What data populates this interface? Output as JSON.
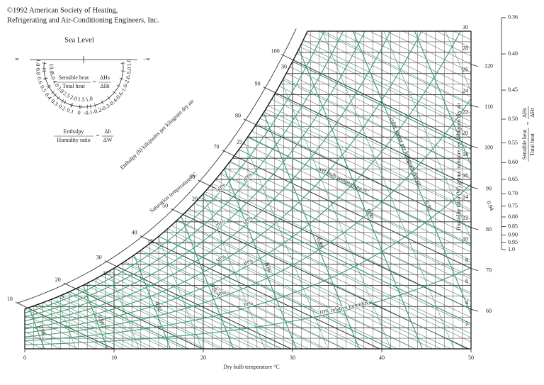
{
  "chart_data": {
    "type": "psychrometric",
    "title_lines": [
      "©1992 American Society of Heating,",
      "Refrigerating and Air-Conditioning Engineers, Inc."
    ],
    "subtitle": "Sea Level",
    "x_label": "Dry bulb temperature °C",
    "xlim": [
      0,
      50
    ],
    "xticks": [
      0,
      10,
      20,
      30,
      40,
      50
    ],
    "y_label": "Humidity ratio (W) grams moisture per kilogram dry air",
    "ylim": [
      0,
      30
    ],
    "yticks": [
      2,
      4,
      6,
      8,
      10,
      12,
      14,
      16,
      18,
      20,
      22,
      24,
      26,
      28,
      30
    ],
    "enthalpy_label": "Enthalpy (h) kilojoules per kilogram dry air",
    "enthalpy_ticks": [
      10,
      20,
      30,
      40,
      50,
      60,
      70,
      80,
      90,
      100
    ],
    "enthalpy_right_ticks": [
      60,
      70,
      80,
      90,
      100,
      110,
      120
    ],
    "saturation_label": "Saturation temperature °C",
    "wet_bulb_label": "wet bulb temperature °C",
    "wet_bulb_ticks": [
      5,
      10,
      15,
      20,
      25,
      30
    ],
    "volume_label": "cubic meter per kilogram dry air",
    "volume_ticks": [
      0.78,
      {
        "value": 0.8,
        "label": "0.80"
      },
      0.82,
      0.84,
      0.86,
      0.88,
      {
        "value": 0.9,
        "label": "0.90"
      },
      0.92,
      0.94
    ],
    "relative_humidity": {
      "values": [
        10,
        20,
        30,
        40,
        50,
        60,
        70,
        80,
        90
      ],
      "value_labels": [
        "10% relative humidity",
        "20%",
        "30%",
        "40%",
        "50%",
        "60%",
        "70%",
        "80%",
        "90%"
      ]
    },
    "grid_color": "#2a2a2a",
    "enthalpy_color": "#333333",
    "rh_color": "#3c9f74",
    "wet_bulb_color": "#3c9f74",
    "volume_color": "#3c9f74",
    "protractor": {
      "infinity_left": "∞",
      "infinity_right": "−∞",
      "outer": [
        {
          "value": 1,
          "label": "1.0"
        },
        0.8,
        0.6,
        0.5,
        0.4,
        0.3,
        0.2,
        0.1,
        0,
        -0.1,
        -0.2,
        -0.3,
        -0.4,
        -0.6,
        {
          "value": -1,
          "label": "-1.0"
        },
        {
          "value": -2,
          "label": "-2.0"
        },
        {
          "value": -5,
          "label": "-5.0"
        },
        {
          "value": 1,
          "label": "1.0"
        }
      ],
      "inner": [
        {
          "value": 10,
          "label": "10.0"
        },
        {
          "value": 5,
          "label": "5.0"
        },
        {
          "value": 4,
          "label": "4.0"
        },
        {
          "value": 3,
          "label": "3.0"
        },
        2.5,
        {
          "value": 2,
          "label": "2.0"
        },
        1.5,
        {
          "value": 1,
          "label": "1.0"
        }
      ],
      "shr_numerator": "Sensible heat",
      "shr_denominator": "Total heat",
      "shr_symbol_numerator": "ΔHs",
      "shr_symbol_denominator": "ΔHt",
      "ratio_numerator": "Enthalpy",
      "ratio_denominator": "Humidity ratio",
      "ratio_symbol_numerator": "Δh",
      "ratio_symbol_denominator": "ΔW",
      "equals": "="
    },
    "shr_scale": {
      "ticks": [
        0.36,
        {
          "value": 0.4,
          "label": "0.40"
        },
        0.45,
        {
          "value": 0.5,
          "label": "0.50"
        },
        0.55,
        {
          "value": 0.6,
          "label": "0.60"
        },
        0.65,
        {
          "value": 0.7,
          "label": "0.70"
        },
        0.75,
        {
          "value": 0.8,
          "label": "0.80"
        },
        0.85,
        {
          "value": 0.9,
          "label": "0.90"
        },
        0.95,
        {
          "value": 1,
          "label": "1.0"
        }
      ]
    }
  }
}
